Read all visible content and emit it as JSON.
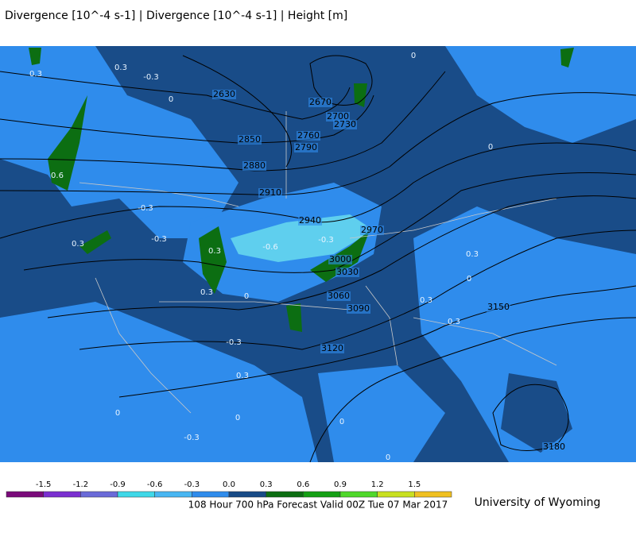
{
  "header": {
    "title": "Divergence [10^-4 s-1] | Divergence [10^-4 s-1] | Height [m]"
  },
  "map": {
    "contour_labels": [
      "2630",
      "2670",
      "2700",
      "2730",
      "2760",
      "2790",
      "2850",
      "2880",
      "2910",
      "2940",
      "2970",
      "3000",
      "3030",
      "3060",
      "3090",
      "3120",
      "3150",
      "3180"
    ],
    "divergence_labels": [
      "0.3",
      "0.3",
      "-0.3",
      "0",
      "-0.3",
      "0.6",
      "0.3",
      "-0.6",
      "-0.3",
      "0.3",
      "0",
      "0.3",
      "-0.3",
      "0",
      "0.3",
      "0",
      "0.3",
      "0",
      "-0.3",
      "0",
      "0",
      "0.3",
      "-0.3",
      "0.3",
      "0",
      "0"
    ]
  },
  "colorbar": {
    "ticks": [
      "-1.5",
      "-1.2",
      "-0.9",
      "-0.6",
      "-0.3",
      "0.0",
      "0.3",
      "0.6",
      "0.9",
      "1.2",
      "1.5"
    ],
    "colors": [
      "#7a0a7a",
      "#7a2fd0",
      "#6a6ad8",
      "#3fd8e8",
      "#48b6f2",
      "#2f8cec",
      "#174b86",
      "#0c6e12",
      "#14a014",
      "#4fd82a",
      "#c8e020",
      "#f0c020"
    ]
  },
  "footer": {
    "caption": "108 Hour 700 hPa Forecast Valid 00Z Tue 07 Mar 2017",
    "credit": "University of Wyoming"
  }
}
